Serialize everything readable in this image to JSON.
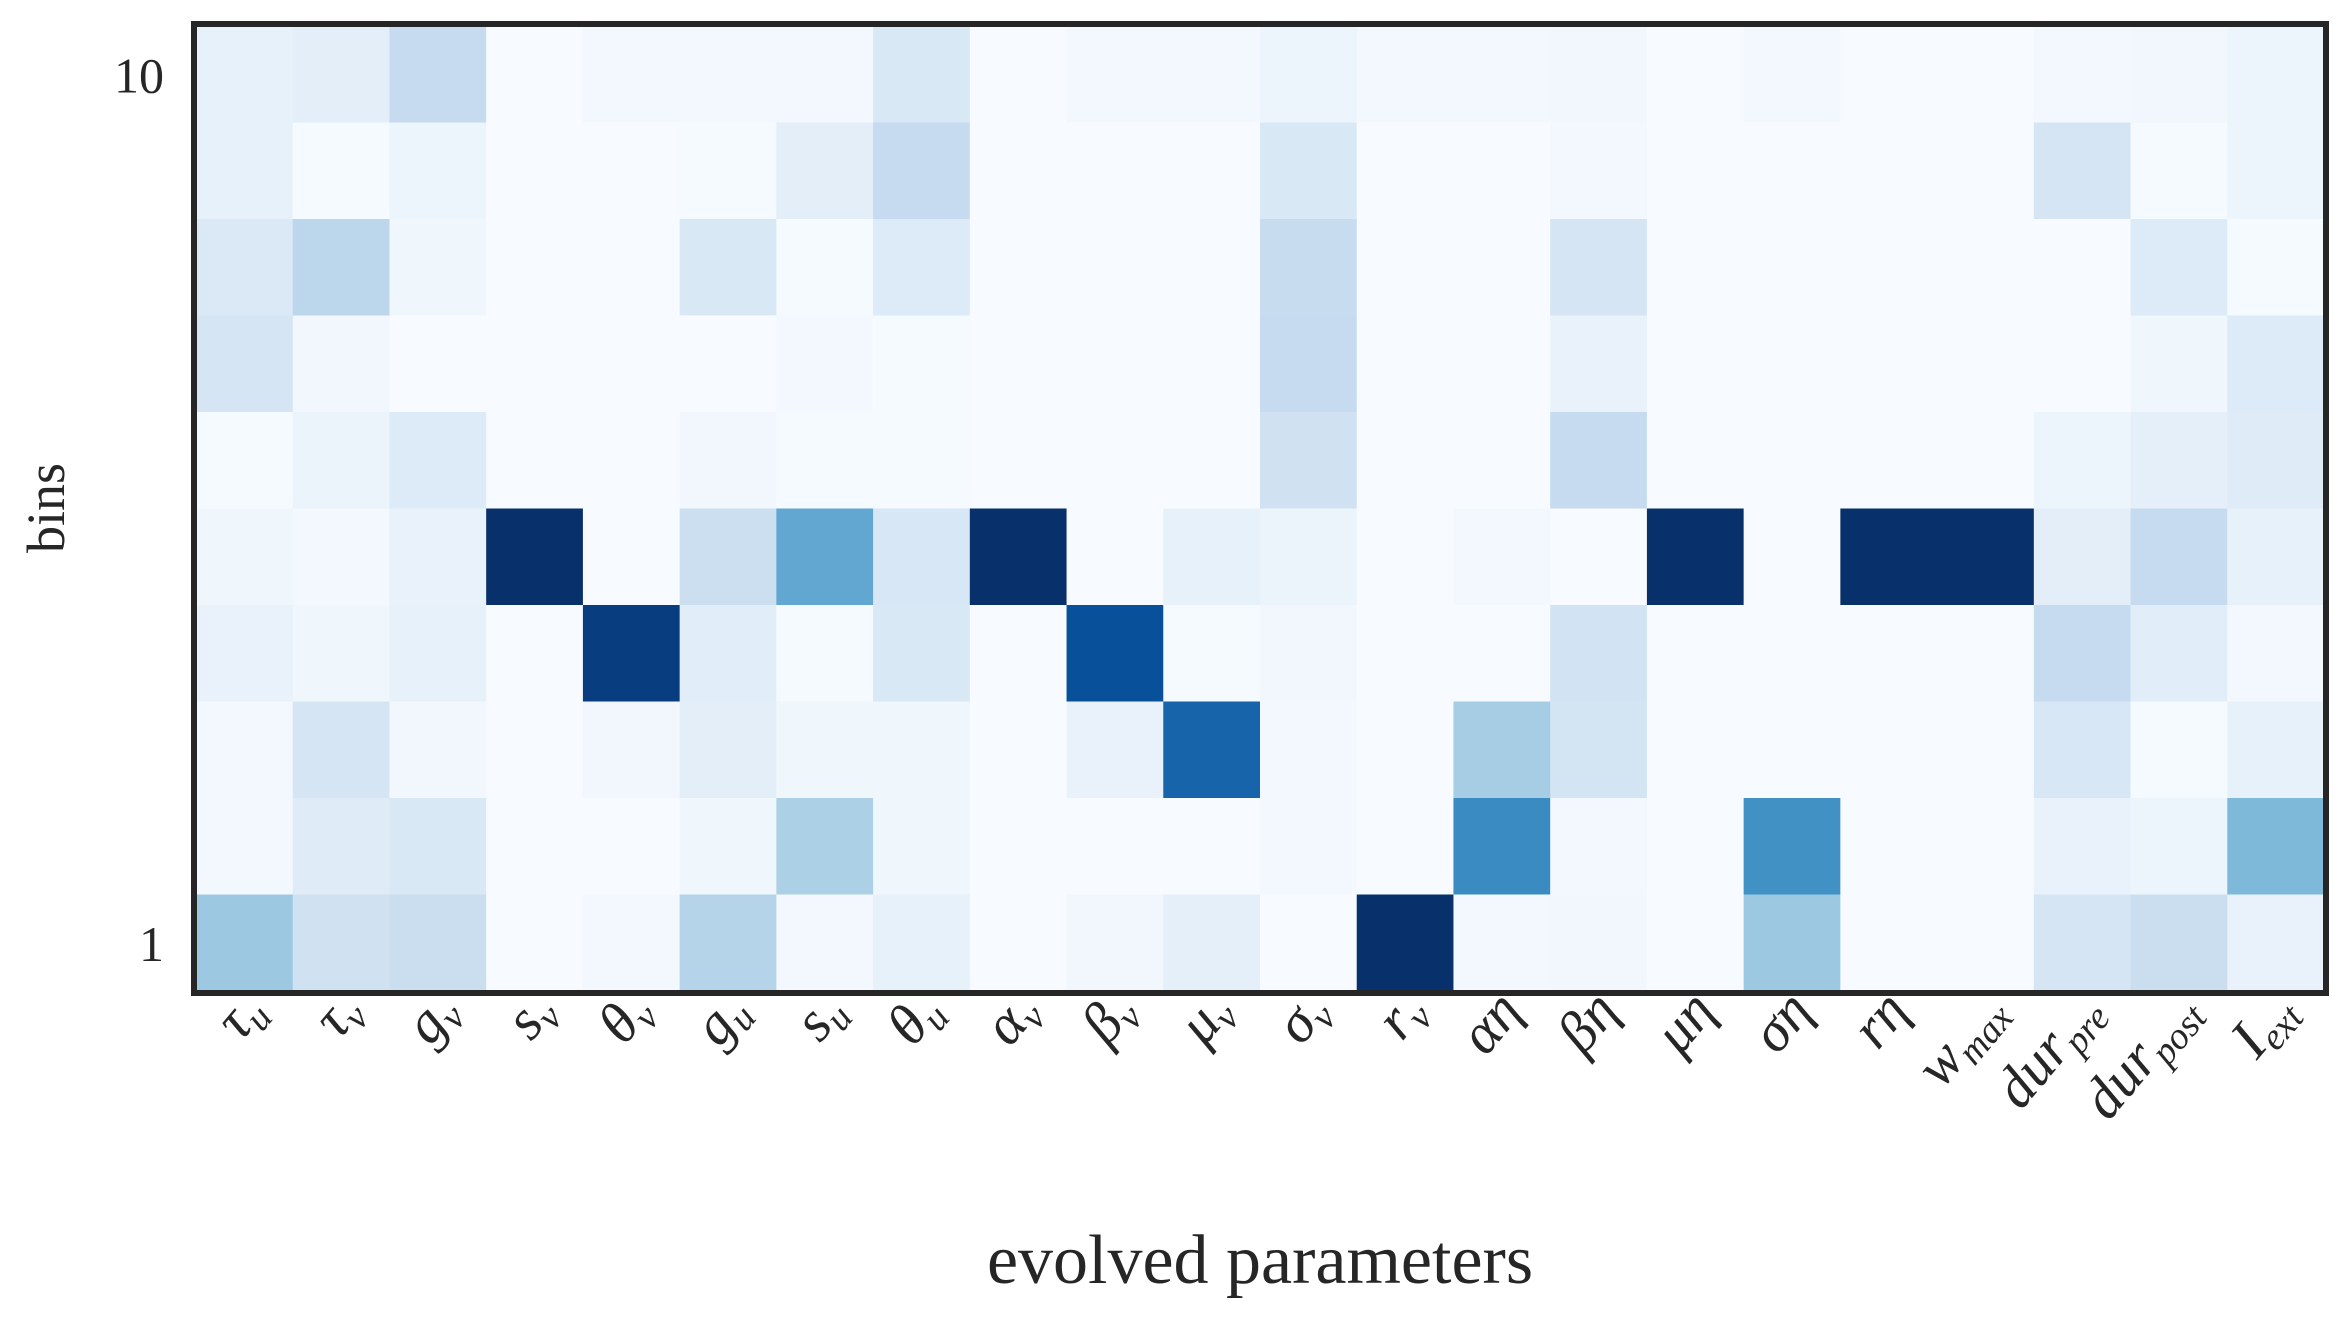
{
  "chart_data": {
    "type": "heatmap",
    "title": "",
    "xlabel": "evolved parameters",
    "ylabel": "bins",
    "colormap": "Blues",
    "colors": {
      "low": "#f7fbff",
      "high": "#08306b",
      "frame": "#262626",
      "text": "#262626"
    },
    "grid": false,
    "legend": "none",
    "y_ticks": [
      {
        "row": 1,
        "label": "1"
      },
      {
        "row": 10,
        "label": "10"
      }
    ],
    "columns": [
      {
        "base": "τ",
        "sub": "u"
      },
      {
        "base": "τ",
        "sub": "v"
      },
      {
        "base": "g",
        "sub": "v"
      },
      {
        "base": "s",
        "sub": "v"
      },
      {
        "base": "θ",
        "sub": "v"
      },
      {
        "base": "g",
        "sub": "u"
      },
      {
        "base": "s",
        "sub": "u"
      },
      {
        "base": "θ",
        "sub": "u"
      },
      {
        "base": "α",
        "sub": "v"
      },
      {
        "base": "β",
        "sub": "v"
      },
      {
        "base": "μ",
        "sub": "v"
      },
      {
        "base": "σ",
        "sub": "v"
      },
      {
        "base": "r",
        "sub": "v"
      },
      {
        "base": "αη",
        "sub": ""
      },
      {
        "base": "βη",
        "sub": ""
      },
      {
        "base": "μη",
        "sub": ""
      },
      {
        "base": "ση",
        "sub": ""
      },
      {
        "base": "rη",
        "sub": ""
      },
      {
        "base": "w",
        "sub": "max"
      },
      {
        "base": "dur",
        "sub": "pre"
      },
      {
        "base": "dur",
        "sub": "post"
      },
      {
        "base": "I",
        "sub": "ext"
      }
    ],
    "values_rows_top_to_bottom": [
      [
        0.08,
        0.1,
        0.25,
        0.0,
        0.02,
        0.02,
        0.02,
        0.15,
        0.0,
        0.02,
        0.02,
        0.05,
        0.02,
        0.02,
        0.03,
        0.0,
        0.02,
        0.0,
        0.0,
        0.02,
        0.03,
        0.05
      ],
      [
        0.08,
        0.01,
        0.05,
        0.0,
        0.0,
        0.01,
        0.1,
        0.25,
        0.0,
        0.0,
        0.0,
        0.15,
        0.0,
        0.0,
        0.02,
        0.0,
        0.0,
        0.0,
        0.0,
        0.17,
        0.01,
        0.05
      ],
      [
        0.14,
        0.28,
        0.04,
        0.0,
        0.0,
        0.15,
        0.01,
        0.13,
        0.0,
        0.0,
        0.0,
        0.24,
        0.0,
        0.0,
        0.17,
        0.0,
        0.0,
        0.0,
        0.0,
        0.0,
        0.13,
        0.01
      ],
      [
        0.17,
        0.03,
        0.0,
        0.0,
        0.0,
        0.0,
        0.02,
        0.01,
        0.0,
        0.0,
        0.0,
        0.25,
        0.0,
        0.0,
        0.07,
        0.0,
        0.0,
        0.0,
        0.0,
        0.0,
        0.04,
        0.13
      ],
      [
        0.01,
        0.06,
        0.13,
        0.0,
        0.0,
        0.03,
        0.01,
        0.01,
        0.0,
        0.0,
        0.0,
        0.2,
        0.0,
        0.0,
        0.25,
        0.0,
        0.0,
        0.0,
        0.0,
        0.05,
        0.09,
        0.12
      ],
      [
        0.04,
        0.02,
        0.07,
        1.0,
        0.0,
        0.22,
        0.53,
        0.16,
        1.0,
        0.0,
        0.08,
        0.06,
        0.0,
        0.02,
        0.0,
        1.0,
        0.0,
        1.0,
        1.0,
        0.1,
        0.25,
        0.08
      ],
      [
        0.07,
        0.04,
        0.08,
        0.0,
        0.95,
        0.11,
        0.01,
        0.15,
        0.0,
        0.88,
        0.01,
        0.03,
        0.0,
        0.0,
        0.19,
        0.0,
        0.0,
        0.0,
        0.0,
        0.25,
        0.11,
        0.02
      ],
      [
        0.02,
        0.17,
        0.03,
        0.0,
        0.03,
        0.1,
        0.04,
        0.04,
        0.0,
        0.07,
        0.8,
        0.02,
        0.0,
        0.35,
        0.18,
        0.0,
        0.0,
        0.0,
        0.0,
        0.16,
        0.01,
        0.08
      ],
      [
        0.02,
        0.12,
        0.15,
        0.0,
        0.0,
        0.04,
        0.33,
        0.04,
        0.0,
        0.0,
        0.0,
        0.02,
        0.0,
        0.65,
        0.02,
        0.0,
        0.63,
        0.0,
        0.0,
        0.07,
        0.05,
        0.45
      ],
      [
        0.38,
        0.2,
        0.23,
        0.0,
        0.02,
        0.3,
        0.02,
        0.08,
        0.0,
        0.03,
        0.09,
        0.0,
        1.0,
        0.02,
        0.03,
        0.0,
        0.38,
        0.0,
        0.0,
        0.17,
        0.23,
        0.07
      ]
    ]
  }
}
